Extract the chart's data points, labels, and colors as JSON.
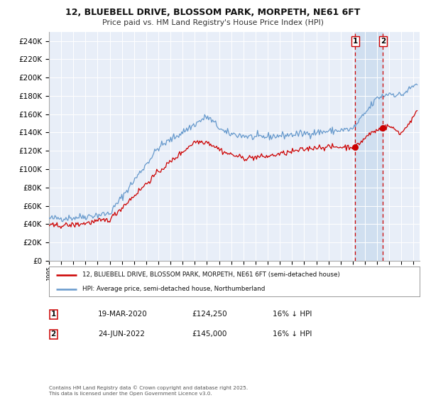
{
  "title": "12, BLUEBELL DRIVE, BLOSSOM PARK, MORPETH, NE61 6FT",
  "subtitle": "Price paid vs. HM Land Registry's House Price Index (HPI)",
  "legend_line1": "12, BLUEBELL DRIVE, BLOSSOM PARK, MORPETH, NE61 6FT (semi-detached house)",
  "legend_line2": "HPI: Average price, semi-detached house, Northumberland",
  "marker1_date": "19-MAR-2020",
  "marker1_price": "£124,250",
  "marker1_hpi": "16% ↓ HPI",
  "marker2_date": "24-JUN-2022",
  "marker2_price": "£145,000",
  "marker2_hpi": "16% ↓ HPI",
  "footnote": "Contains HM Land Registry data © Crown copyright and database right 2025.\nThis data is licensed under the Open Government Licence v3.0.",
  "vline1_x": 2020.21,
  "vline2_x": 2022.49,
  "bg_color": "#ffffff",
  "plot_bg_color": "#e8eef8",
  "grid_color": "#ffffff",
  "red_color": "#cc0000",
  "blue_color": "#6699cc",
  "highlight_bg": "#d0dff0",
  "ylim": [
    0,
    250000
  ],
  "xlim": [
    1995,
    2025.5
  ],
  "ytick_symbol": "£"
}
